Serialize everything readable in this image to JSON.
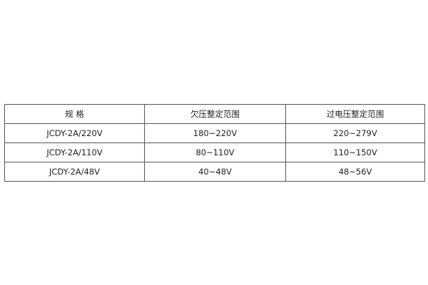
{
  "table": {
    "headers": [
      "规 格",
      "欠压整定范围",
      "过电压整定范围"
    ],
    "rows": [
      [
        "JCDY-2A/220V",
        "180~220V",
        "220~279V"
      ],
      [
        "JCDY-2A/110V",
        "80~110V",
        "110~150V"
      ],
      [
        "JCDY-2A/48V",
        "40~48V",
        "48~56V"
      ]
    ]
  }
}
